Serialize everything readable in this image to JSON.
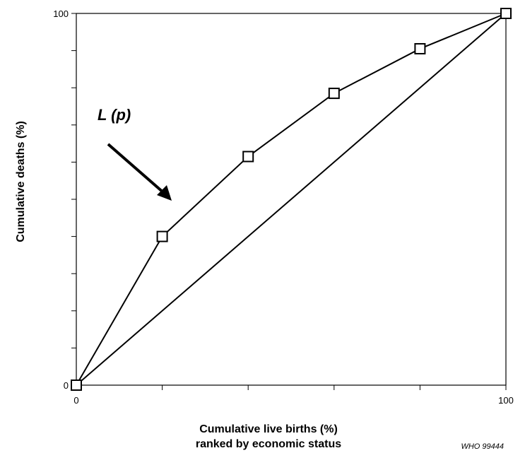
{
  "chart_data": {
    "type": "line",
    "title": "",
    "xlabel_lines": [
      "Cumulative live births (%)",
      "ranked by economic status"
    ],
    "ylabel": "Cumulative deaths (%)",
    "xlim": [
      0,
      100
    ],
    "ylim": [
      0,
      100
    ],
    "x_tick_values": [
      0,
      20,
      40,
      60,
      80,
      100
    ],
    "y_tick_values": [
      0,
      10,
      20,
      30,
      40,
      50,
      60,
      70,
      80,
      90,
      100
    ],
    "x_tick_labels": [
      {
        "value": 0,
        "label": "0"
      },
      {
        "value": 100,
        "label": "100"
      }
    ],
    "y_tick_labels": [
      {
        "value": 0,
        "label": "0"
      },
      {
        "value": 100,
        "label": "100"
      }
    ],
    "series": [
      {
        "marker": "square",
        "x": [
          0,
          20,
          40,
          60,
          80,
          100
        ],
        "y": [
          0,
          40,
          61.5,
          78.5,
          90.5,
          100
        ]
      },
      {
        "marker": "none",
        "x": [
          0,
          100
        ],
        "y": [
          0,
          100
        ]
      }
    ],
    "annotations": [
      {
        "text": "L (p)",
        "arrow": true
      }
    ],
    "grid": false,
    "credit": "WHO 99444"
  }
}
